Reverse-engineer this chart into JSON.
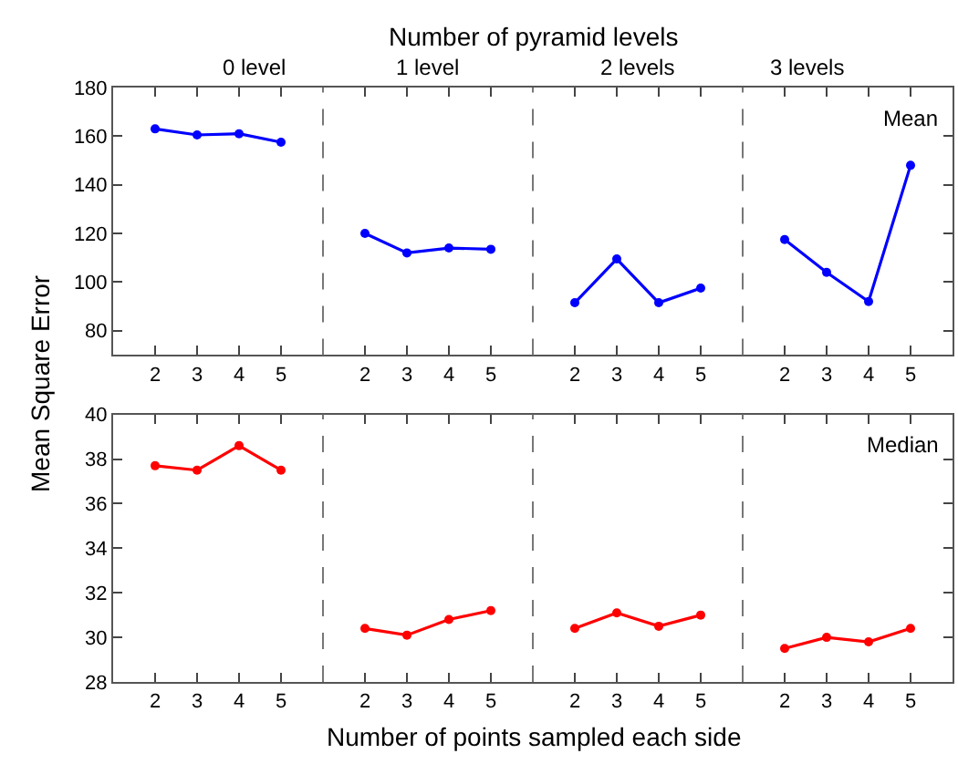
{
  "chart_data": [
    {
      "type": "line",
      "title": "0 level",
      "ylabel": "Mean Square Error",
      "annotations": [
        "Number of pyramid levels"
      ],
      "categories": [
        "2",
        "3",
        "4",
        "5"
      ],
      "values": [
        163,
        160.5,
        161,
        157.5
      ],
      "color": "#0000ff",
      "ylim": [
        70,
        180
      ],
      "yticks": [
        80,
        100,
        120,
        140,
        160,
        180
      ],
      "marker": "circle"
    },
    {
      "type": "line",
      "title": "1 level",
      "categories": [
        "2",
        "3",
        "4",
        "5"
      ],
      "values": [
        120,
        112,
        114,
        113.5
      ],
      "color": "#0000ff",
      "ylim": [
        70,
        180
      ],
      "yticks": [
        80,
        100,
        120,
        140,
        160,
        180
      ],
      "tick_labels": "x",
      "marker": "circle"
    },
    {
      "type": "line",
      "title": "2 levels",
      "categories": [
        "2",
        "3",
        "4",
        "5"
      ],
      "values": [
        91.5,
        109.5,
        91.5,
        97.5
      ],
      "color": "#0000ff",
      "ylim": [
        70,
        180
      ],
      "yticks": [
        80,
        100,
        120,
        140,
        160,
        180
      ],
      "tick_labels": "x",
      "marker": "circle"
    },
    {
      "type": "line",
      "title": "3 levels",
      "annotations": [
        "Mean"
      ],
      "categories": [
        "2",
        "3",
        "4",
        "5"
      ],
      "values": [
        117.5,
        104,
        92,
        148
      ],
      "color": "#0000ff",
      "ylim": [
        70,
        180
      ],
      "yticks": [
        80,
        100,
        120,
        140,
        160,
        180
      ],
      "tick_labels": "x",
      "marker": "circle"
    },
    {
      "type": "line",
      "xlabel": "Number of points sampled each side",
      "categories": [
        "2",
        "3",
        "4",
        "5"
      ],
      "values": [
        37.7,
        37.5,
        38.6,
        37.5
      ],
      "color": "#ff0000",
      "ylim": [
        28,
        40
      ],
      "yticks": [
        28,
        30,
        32,
        34,
        36,
        38,
        40
      ],
      "marker": "circle"
    },
    {
      "type": "line",
      "categories": [
        "2",
        "3",
        "4",
        "5"
      ],
      "values": [
        30.4,
        30.1,
        30.8,
        31.2
      ],
      "color": "#ff0000",
      "ylim": [
        28,
        40
      ],
      "yticks": [
        28,
        30,
        32,
        34,
        36,
        38,
        40
      ],
      "tick_labels": "x",
      "marker": "circle"
    },
    {
      "type": "line",
      "categories": [
        "2",
        "3",
        "4",
        "5"
      ],
      "values": [
        30.4,
        31.1,
        30.5,
        31.0
      ],
      "color": "#ff0000",
      "ylim": [
        28,
        40
      ],
      "yticks": [
        28,
        30,
        32,
        34,
        36,
        38,
        40
      ],
      "tick_labels": "x",
      "marker": "circle"
    },
    {
      "type": "line",
      "annotations": [
        "Median"
      ],
      "categories": [
        "2",
        "3",
        "4",
        "5"
      ],
      "values": [
        29.5,
        30.0,
        29.8,
        30.4
      ],
      "color": "#ff0000",
      "ylim": [
        28,
        40
      ],
      "yticks": [
        28,
        30,
        32,
        34,
        36,
        38,
        40
      ],
      "tick_labels": "x",
      "marker": "circle"
    }
  ]
}
